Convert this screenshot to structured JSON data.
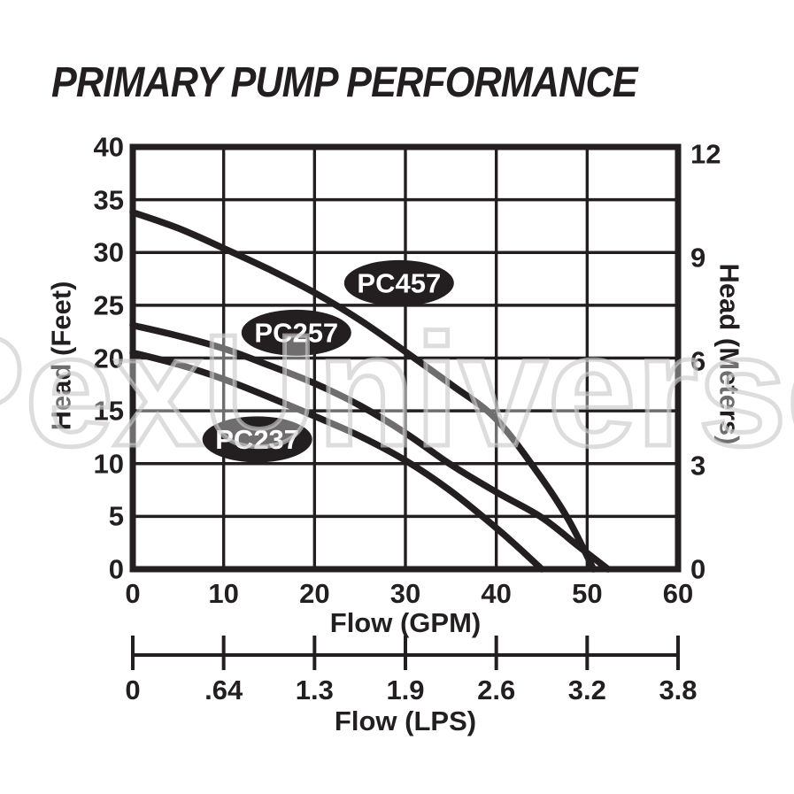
{
  "title": "PRIMARY PUMP PERFORMANCE",
  "watermark": "PexUniverse",
  "colors": {
    "ink": "#231f20",
    "background": "#ffffff",
    "watermark_outline": "#cbcbcb",
    "series_label_text": "#ffffff"
  },
  "chart_data": {
    "type": "line",
    "title": "PRIMARY PUMP PERFORMANCE",
    "grid": "on",
    "x_axis": {
      "label": "Flow (GPM)",
      "min": 0,
      "max": 60,
      "ticks": [
        0,
        10,
        20,
        30,
        40,
        50,
        60
      ]
    },
    "x_axis_secondary": {
      "label": "Flow (LPS)",
      "tick_labels": [
        "0",
        ".64",
        "1.3",
        "1.9",
        "2.6",
        "3.2",
        "3.8"
      ]
    },
    "y_axis_left": {
      "label": "Head (Feet)",
      "min": 0,
      "max": 40,
      "ticks": [
        40,
        35,
        30,
        25,
        20,
        15,
        10,
        5,
        0
      ]
    },
    "y_axis_right": {
      "label": "Head (Meters)",
      "ticks": [
        12,
        9,
        6,
        3,
        0
      ],
      "feet_per_meter": 3.2808
    },
    "series": [
      {
        "name": "PC457",
        "points": [
          [
            0,
            33.8
          ],
          [
            5,
            32.3
          ],
          [
            10,
            30.4
          ],
          [
            15,
            28.4
          ],
          [
            20,
            26.2
          ],
          [
            25,
            23.6
          ],
          [
            30,
            20.6
          ],
          [
            35,
            17.5
          ],
          [
            40,
            14.2
          ],
          [
            45,
            8.6
          ],
          [
            48,
            4.6
          ],
          [
            50.7,
            0
          ]
        ],
        "label_pos": [
          29.3,
          27.1
        ]
      },
      {
        "name": "PC257",
        "points": [
          [
            0,
            23.1
          ],
          [
            5,
            22.1
          ],
          [
            10,
            20.9
          ],
          [
            15,
            19.3
          ],
          [
            20,
            17.6
          ],
          [
            25,
            15.5
          ],
          [
            30,
            12.9
          ],
          [
            35,
            9.9
          ],
          [
            40,
            7.3
          ],
          [
            45,
            4.9
          ],
          [
            49,
            2.2
          ],
          [
            52.3,
            0
          ]
        ],
        "label_pos": [
          18.0,
          22.4
        ]
      },
      {
        "name": "PC237",
        "points": [
          [
            0,
            20.5
          ],
          [
            5,
            19.4
          ],
          [
            10,
            18.0
          ],
          [
            15,
            16.3
          ],
          [
            20,
            14.5
          ],
          [
            25,
            12.6
          ],
          [
            30,
            10.3
          ],
          [
            35,
            7.4
          ],
          [
            40,
            3.9
          ],
          [
            43,
            1.6
          ],
          [
            45,
            0
          ]
        ],
        "label_pos": [
          13.7,
          12.3
        ]
      }
    ]
  }
}
